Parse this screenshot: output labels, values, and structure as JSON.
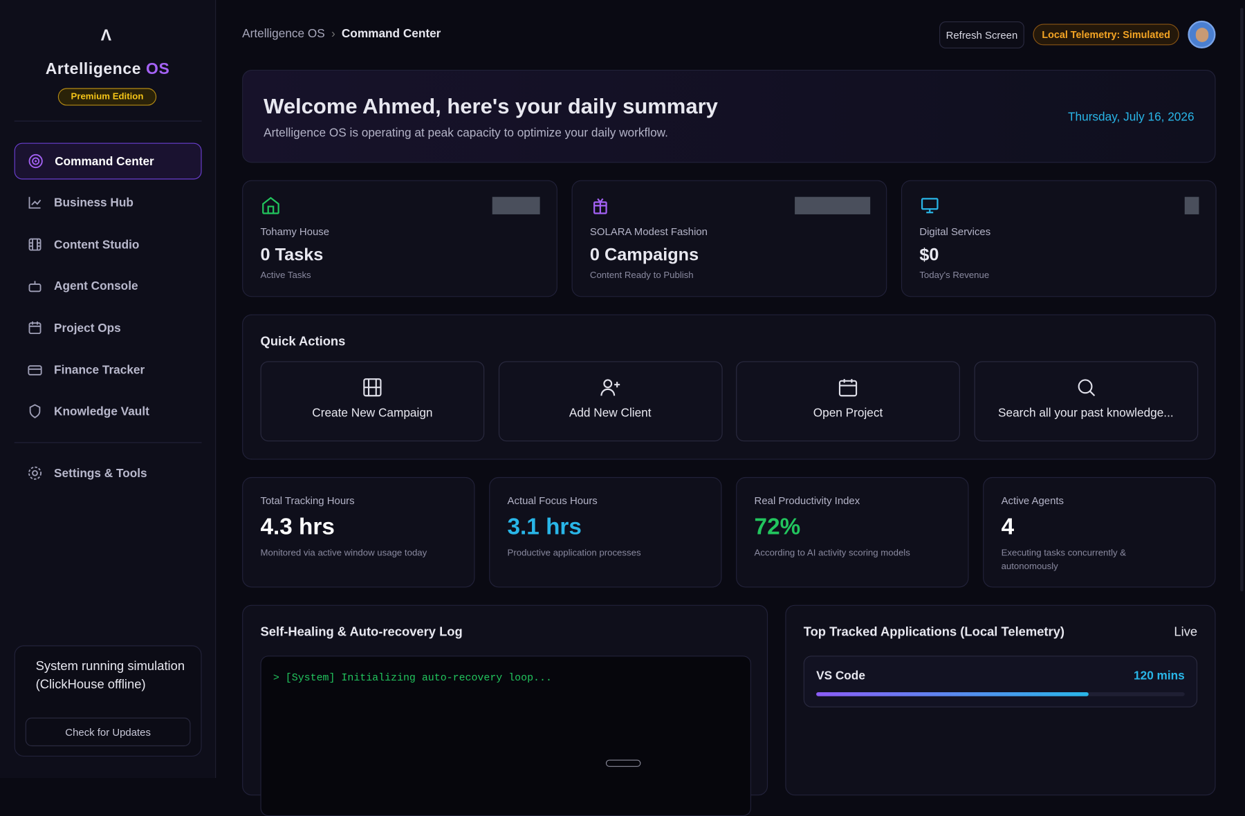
{
  "sidebar": {
    "brand": "Artelligence",
    "brand_accent": "OS",
    "edition": "Premium Edition",
    "nav": [
      "Command Center",
      "Business Hub",
      "Content Studio",
      "Agent Console",
      "Project Ops",
      "Finance Tracker",
      "Knowledge Vault"
    ],
    "settings": "Settings & Tools",
    "status": "System running simulation (ClickHouse offline)",
    "update_button": "Check for Updates"
  },
  "header": {
    "breadcrumb": [
      "Artelligence OS",
      "Command Center"
    ],
    "refresh": "Refresh Screen",
    "telemetry": "Local Telemetry: Simulated"
  },
  "welcome": {
    "title": "Welcome Ahmed, here's your daily summary",
    "subtitle": "Artelligence OS is operating at peak capacity to optimize your daily workflow.",
    "date": "Thursday, July 16, 2026"
  },
  "businesses": [
    {
      "name": "Tohamy House",
      "value": "0 Tasks",
      "label": "Active Tasks"
    },
    {
      "name": "SOLARA Modest Fashion",
      "value": "0 Campaigns",
      "label": "Content Ready to Publish"
    },
    {
      "name": "Digital Services",
      "value": "$0",
      "label": "Today's Revenue"
    }
  ],
  "quick_actions": {
    "title": "Quick Actions",
    "actions": [
      "Create New Campaign",
      "Add New Client",
      "Open Project",
      "Search all your past knowledge..."
    ]
  },
  "metrics": [
    {
      "label": "Total Tracking Hours",
      "value": "4.3 hrs",
      "note": "Monitored via active window usage today"
    },
    {
      "label": "Actual Focus Hours",
      "value": "3.1 hrs",
      "note": "Productive application processes"
    },
    {
      "label": "Real Productivity Index",
      "value": "72%",
      "note": "According to AI activity scoring models"
    },
    {
      "label": "Active Agents",
      "value": "4",
      "note": "Executing tasks concurrently & autonomously"
    }
  ],
  "log": {
    "title": "Self-Healing & Auto-recovery Log",
    "lines": [
      "> [System] Initializing auto-recovery loop..."
    ]
  },
  "apps": {
    "title": "Top Tracked Applications (Local Telemetry)",
    "status": "Live",
    "items": [
      {
        "name": "VS Code",
        "value": "120 mins",
        "bar_percent": 74
      }
    ]
  }
}
